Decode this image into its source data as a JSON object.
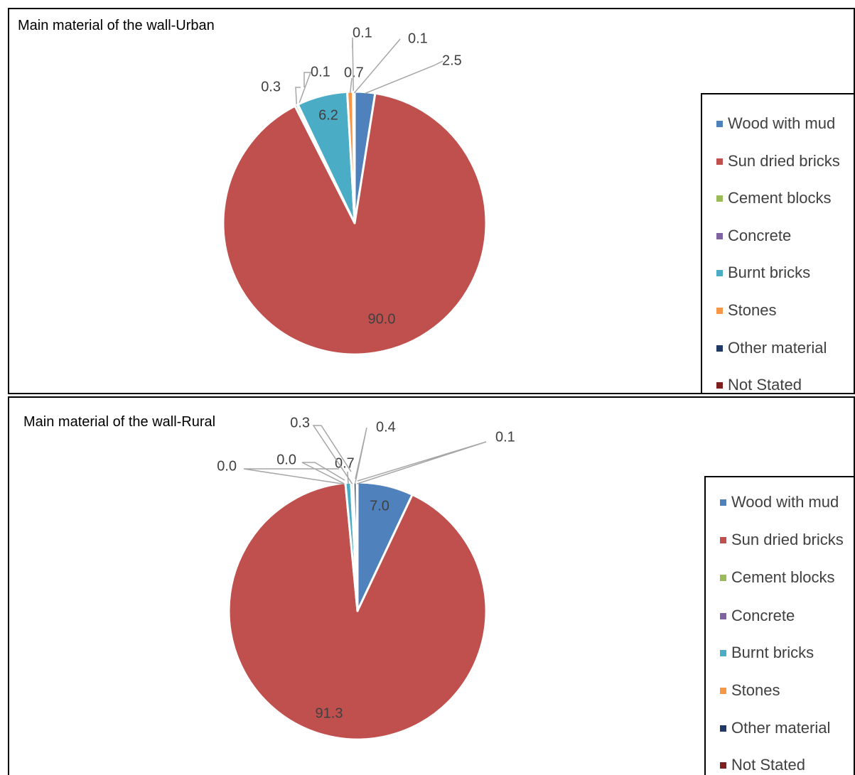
{
  "colors": {
    "Wood with mud": "#4f81bd",
    "Sun dried bricks": "#c0504d",
    "Cement blocks": "#9bbb59",
    "Concrete": "#8064a2",
    "Burnt bricks": "#4bacc6",
    "Stones": "#f79646",
    "Other material": "#1f3864",
    "Not Stated": "#7f1f1f"
  },
  "chart_data": [
    {
      "type": "pie",
      "title": "Main material of the wall-Urban",
      "legend": [
        "Wood with mud",
        "Sun dried bricks",
        "Cement blocks",
        "Concrete",
        "Burnt bricks",
        "Stones",
        "Other material",
        "Not Stated"
      ],
      "legend_position": "right",
      "slices": [
        {
          "label": "Wood with mud",
          "value": 2.5,
          "label_text": "2.5"
        },
        {
          "label": "Sun dried bricks",
          "value": 90.0,
          "label_text": "90.0"
        },
        {
          "label": "Cement blocks",
          "value": 0.3,
          "label_text": "0.3"
        },
        {
          "label": "Concrete",
          "value": 0.1,
          "label_text": "0.1"
        },
        {
          "label": "Burnt bricks",
          "value": 6.2,
          "label_text": "6.2"
        },
        {
          "label": "Stones",
          "value": 0.7,
          "label_text": "0.7"
        },
        {
          "label": "Other material",
          "value": 0.1,
          "label_text": "0.1"
        },
        {
          "label": "Not Stated",
          "value": 0.1,
          "label_text": "0.1"
        }
      ]
    },
    {
      "type": "pie",
      "title": "Main material of the wall-Rural",
      "legend": [
        "Wood with mud",
        "Sun dried bricks",
        "Cement blocks",
        "Concrete",
        "Burnt bricks",
        "Stones",
        "Other material",
        "Not Stated"
      ],
      "legend_position": "right",
      "slices": [
        {
          "label": "Wood with mud",
          "value": 7.0,
          "label_text": "7.0"
        },
        {
          "label": "Sun dried bricks",
          "value": 91.3,
          "label_text": "91.3"
        },
        {
          "label": "Cement blocks",
          "value": 0.0,
          "label_text": "0.0"
        },
        {
          "label": "Concrete",
          "value": 0.0,
          "label_text": "0.0"
        },
        {
          "label": "Burnt bricks",
          "value": 0.7,
          "label_text": "0.7"
        },
        {
          "label": "Stones",
          "value": 0.3,
          "label_text": "0.3"
        },
        {
          "label": "Other material",
          "value": 0.4,
          "label_text": "0.4"
        },
        {
          "label": "Not Stated",
          "value": 0.1,
          "label_text": "0.1"
        }
      ]
    }
  ]
}
